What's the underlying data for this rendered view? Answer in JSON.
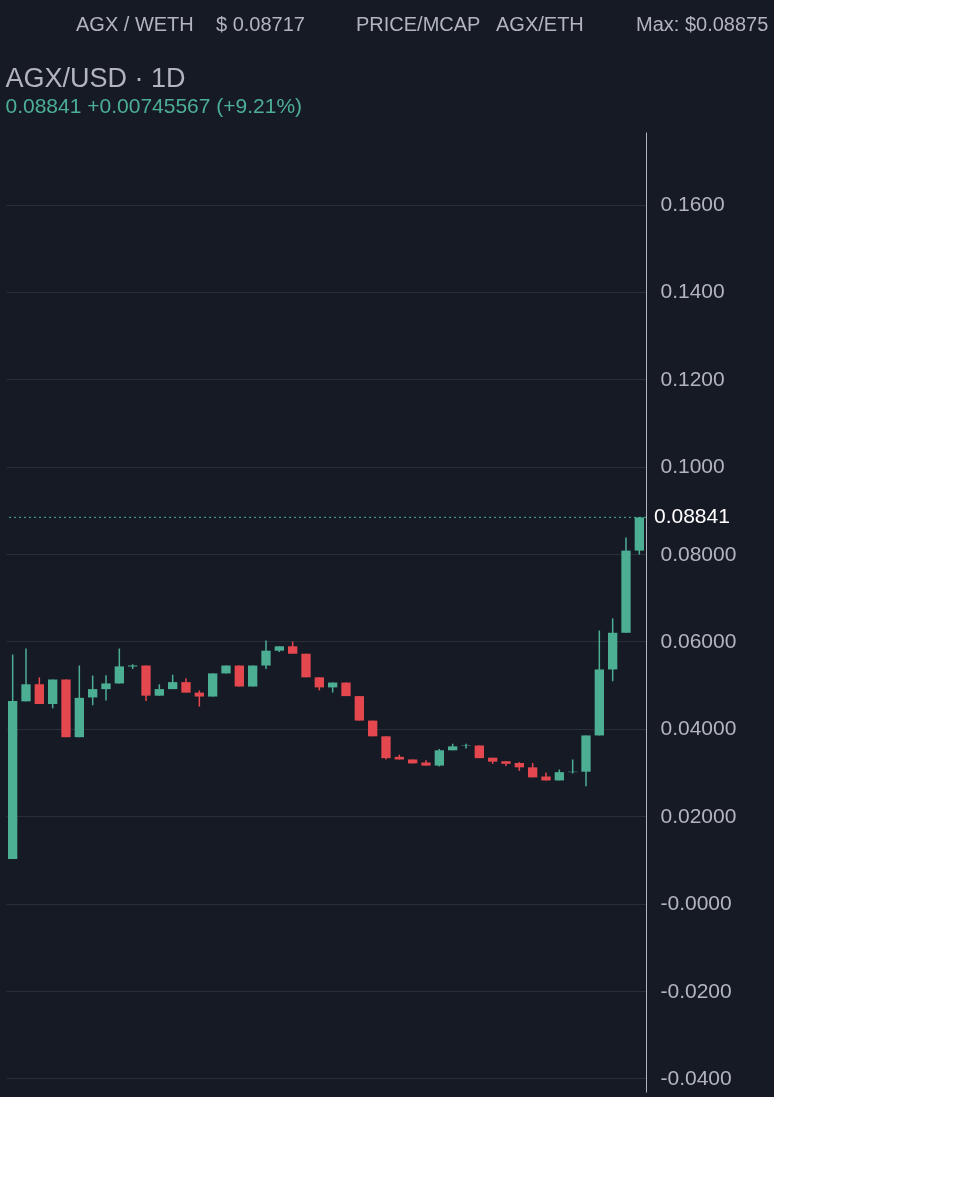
{
  "chart_data": {
    "type": "candlestick",
    "title": "AGX/USD · 1D",
    "subtitle": "0.08841 +0.00745567 (+9.21%)",
    "annotations": [
      "AGX / WETH",
      "$ 0.08717",
      "PRICE/MCAP",
      "AGX/ETH",
      "Max: $0.08875"
    ],
    "categories": [
      null,
      null,
      null,
      null,
      null,
      null,
      null,
      null,
      null,
      null,
      null,
      null,
      null,
      null,
      null,
      null,
      null,
      null,
      null,
      null,
      null,
      null,
      null,
      null,
      null,
      null,
      null,
      null,
      null,
      null,
      null,
      null,
      null,
      null,
      null,
      null,
      null,
      null,
      null,
      null,
      null,
      null,
      null,
      null,
      null,
      null,
      null,
      null
    ],
    "ohlc": [
      [
        0.0102,
        0.057,
        0.0102,
        0.0464
      ],
      [
        0.0463,
        0.0584,
        0.0463,
        0.0502
      ],
      [
        0.0502,
        0.0518,
        0.0457,
        0.0457
      ],
      [
        0.0457,
        0.0513,
        0.0447,
        0.0513
      ],
      [
        0.0513,
        0.0513,
        0.0381,
        0.0381
      ],
      [
        0.0381,
        0.0545,
        0.0381,
        0.0471
      ],
      [
        0.0472,
        0.0522,
        0.0454,
        0.0491
      ],
      [
        0.0491,
        0.0523,
        0.0465,
        0.0504
      ],
      [
        0.0504,
        0.0584,
        0.0504,
        0.0543
      ],
      [
        0.0543,
        0.0548,
        0.0537,
        0.0545
      ],
      [
        0.0545,
        0.0545,
        0.0464,
        0.0476
      ],
      [
        0.0476,
        0.0502,
        0.0476,
        0.0491
      ],
      [
        0.0491,
        0.0524,
        0.0491,
        0.0507
      ],
      [
        0.0507,
        0.0516,
        0.0483,
        0.0483
      ],
      [
        0.0483,
        0.0488,
        0.0451,
        0.0474
      ],
      [
        0.0474,
        0.0527,
        0.0474,
        0.0527
      ],
      [
        0.0527,
        0.0545,
        0.0527,
        0.0545
      ],
      [
        0.0545,
        0.0545,
        0.0497,
        0.0497
      ],
      [
        0.0497,
        0.0545,
        0.0497,
        0.0545
      ],
      [
        0.0545,
        0.0602,
        0.0537,
        0.0579
      ],
      [
        0.0579,
        0.0589,
        0.0576,
        0.0589
      ],
      [
        0.0589,
        0.06,
        0.0572,
        0.0572
      ],
      [
        0.0572,
        0.0572,
        0.0518,
        0.0518
      ],
      [
        0.0518,
        0.0518,
        0.0488,
        0.0495
      ],
      [
        0.0495,
        0.0506,
        0.0483,
        0.0506
      ],
      [
        0.0506,
        0.0506,
        0.0475,
        0.0475
      ],
      [
        0.0475,
        0.0475,
        0.0419,
        0.0419
      ],
      [
        0.0419,
        0.0419,
        0.0383,
        0.0383
      ],
      [
        0.0383,
        0.0383,
        0.033,
        0.0333
      ],
      [
        0.0336,
        0.0341,
        0.033,
        0.033
      ],
      [
        0.033,
        0.033,
        0.0321,
        0.0321
      ],
      [
        0.0323,
        0.0328,
        0.0316,
        0.0316
      ],
      [
        0.0316,
        0.0354,
        0.0314,
        0.0351
      ],
      [
        0.0351,
        0.0366,
        0.0351,
        0.036
      ],
      [
        0.0361,
        0.0366,
        0.0355,
        0.0362
      ],
      [
        0.0362,
        0.0362,
        0.0333,
        0.0333
      ],
      [
        0.0334,
        0.0334,
        0.032,
        0.0325
      ],
      [
        0.0326,
        0.0326,
        0.0315,
        0.032
      ],
      [
        0.0322,
        0.0324,
        0.0304,
        0.0312
      ],
      [
        0.0312,
        0.0322,
        0.0289,
        0.0289
      ],
      [
        0.0291,
        0.03,
        0.0282,
        0.0282
      ],
      [
        0.0282,
        0.0307,
        0.0282,
        0.0301
      ],
      [
        0.0301,
        0.033,
        0.0298,
        0.0302
      ],
      [
        0.0302,
        0.0385,
        0.0269,
        0.0385
      ],
      [
        0.0385,
        0.0625,
        0.0385,
        0.0536
      ],
      [
        0.0536,
        0.0653,
        0.0509,
        0.062
      ],
      [
        0.062,
        0.0838,
        0.062,
        0.0808
      ],
      [
        0.0808,
        0.0885,
        0.0799,
        0.0884
      ]
    ],
    "colors": [
      "#4caf94",
      "#4caf94",
      "#e5474f",
      "#4caf94",
      "#e5474f",
      "#4caf94",
      "#4caf94",
      "#4caf94",
      "#4caf94",
      "#4caf94",
      "#e5474f",
      "#4caf94",
      "#4caf94",
      "#e5474f",
      "#e5474f",
      "#4caf94",
      "#4caf94",
      "#e5474f",
      "#4caf94",
      "#4caf94",
      "#4caf94",
      "#e5474f",
      "#e5474f",
      "#e5474f",
      "#4caf94",
      "#e5474f",
      "#e5474f",
      "#e5474f",
      "#e5474f",
      "#e5474f",
      "#e5474f",
      "#e5474f",
      "#4caf94",
      "#4caf94",
      "#4caf94",
      "#e5474f",
      "#e5474f",
      "#e5474f",
      "#e5474f",
      "#e5474f",
      "#e5474f",
      "#4caf94",
      "#4caf94",
      "#4caf94",
      "#4caf94",
      "#4caf94",
      "#4caf94",
      "#4caf94"
    ],
    "ylim": [
      -0.0431,
      0.1766
    ],
    "yticks": [
      {
        "value": 0.16,
        "label": "0.1600"
      },
      {
        "value": 0.14,
        "label": "0.1400"
      },
      {
        "value": 0.12,
        "label": "0.1200"
      },
      {
        "value": 0.1,
        "label": "0.1000"
      },
      {
        "value": 0.08,
        "label": "0.08000"
      },
      {
        "value": 0.06,
        "label": "0.06000"
      },
      {
        "value": 0.04,
        "label": "0.04000"
      },
      {
        "value": 0.02,
        "label": "0.02000"
      },
      {
        "value": 0,
        "label": "-0.0000"
      },
      {
        "value": -0.02,
        "label": "-0.0200"
      },
      {
        "value": -0.04,
        "label": "-0.0400"
      }
    ],
    "ref_lines": [
      {
        "axis": "y",
        "value": 0.08841,
        "label": "0.08841",
        "color": "#4caf94",
        "line_style": "dotted"
      }
    ],
    "grid": "y",
    "tick_labels": "y"
  }
}
